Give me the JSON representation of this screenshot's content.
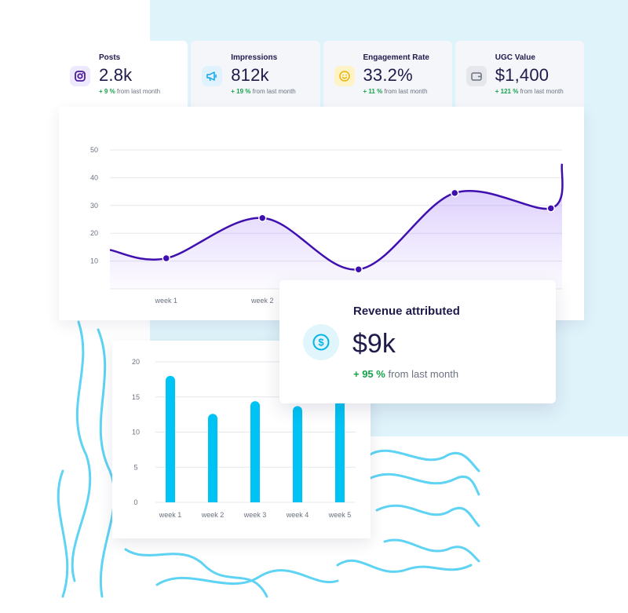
{
  "colors": {
    "line": "#3f0fb0",
    "bar": "#00c3f5",
    "positive": "#16a34a",
    "background_panel": "#dff3fb"
  },
  "stats": [
    {
      "title": "Posts",
      "value": "2.8k",
      "change_pct": "+ 9 %",
      "change_text": "from last month",
      "icon": "instagram-icon",
      "icon_color": "#4c1d95",
      "icon_bg": "#ede9fe"
    },
    {
      "title": "Impressions",
      "value": "812k",
      "change_pct": "+ 19 %",
      "change_text": "from last month",
      "icon": "megaphone-icon",
      "icon_color": "#0ea5e9",
      "icon_bg": "#e0f2fe"
    },
    {
      "title": "Engagement Rate",
      "value": "33.2%",
      "change_pct": "+ 11 %",
      "change_text": "from last month",
      "icon": "smiley-icon",
      "icon_color": "#eab308",
      "icon_bg": "#fef3c7"
    },
    {
      "title": "UGC Value",
      "value": "$1,400",
      "change_pct": "+ 121 %",
      "change_text": "from last month",
      "icon": "wallet-icon",
      "icon_color": "#6b7280",
      "icon_bg": "#e5e7eb"
    }
  ],
  "revenue": {
    "title": "Revenue attributed",
    "value": "$9k",
    "change_pct": "+ 95 %",
    "change_text": "from last month",
    "icon": "dollar-circle-icon"
  },
  "chart_data": [
    {
      "type": "line",
      "yticks": [
        10,
        20,
        30,
        40,
        50
      ],
      "ylim": [
        0,
        50
      ],
      "xlabels": [
        "week 1",
        "week 2"
      ],
      "points": [
        {
          "x": 0.3,
          "y": 11
        },
        {
          "x": 1.3,
          "y": 25.5
        },
        {
          "x": 2.3,
          "y": 7
        },
        {
          "x": 3.3,
          "y": 34.5
        },
        {
          "x": 4.3,
          "y": 29
        }
      ],
      "grid": true,
      "marker_points": [
        0,
        1,
        2,
        3,
        4
      ]
    },
    {
      "type": "bar",
      "categories": [
        "week 1",
        "week 2",
        "week 3",
        "week 4",
        "week 5"
      ],
      "values": [
        18,
        12.6,
        14.4,
        13.7,
        21
      ],
      "yticks": [
        0,
        5,
        10,
        15,
        20
      ],
      "ylim": [
        0,
        20
      ],
      "grid": true
    }
  ]
}
